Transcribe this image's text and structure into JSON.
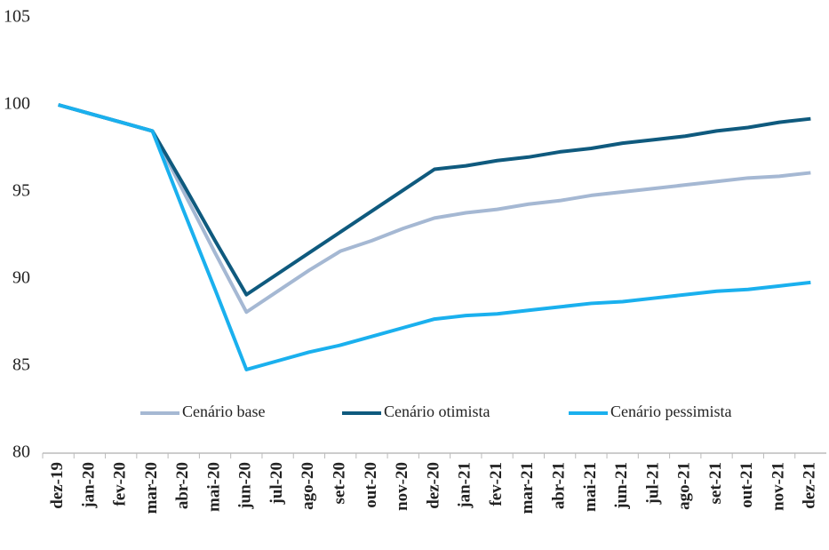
{
  "chart_data": {
    "type": "line",
    "categories": [
      "dez-19",
      "jan-20",
      "fev-20",
      "mar-20",
      "abr-20",
      "mai-20",
      "jun-20",
      "jul-20",
      "ago-20",
      "set-20",
      "out-20",
      "nov-20",
      "dez-20",
      "jan-21",
      "fev-21",
      "mar-21",
      "abr-21",
      "mai-21",
      "jun-21",
      "jul-21",
      "ago-21",
      "set-21",
      "out-21",
      "nov-21",
      "dez-21"
    ],
    "series": [
      {
        "name": "Cenário base",
        "color": "#a5b8d3",
        "values": [
          100,
          99.5,
          99.0,
          98.5,
          95.0,
          91.5,
          88.1,
          89.3,
          90.5,
          91.6,
          92.2,
          92.9,
          93.5,
          93.8,
          94.0,
          94.3,
          94.5,
          94.8,
          95.0,
          95.2,
          95.4,
          95.6,
          95.8,
          95.9,
          96.1
        ]
      },
      {
        "name": "Cenário otimista",
        "color": "#0f5a7e",
        "values": [
          100,
          99.5,
          99.0,
          98.5,
          95.4,
          92.2,
          89.1,
          90.3,
          91.5,
          92.7,
          93.9,
          95.1,
          96.3,
          96.5,
          96.8,
          97.0,
          97.3,
          97.5,
          97.8,
          98.0,
          98.2,
          98.5,
          98.7,
          99.0,
          99.2
        ]
      },
      {
        "name": "Cenário pessimista",
        "color": "#1ab0ee",
        "values": [
          100,
          99.5,
          99.0,
          98.5,
          93.9,
          89.4,
          84.8,
          85.3,
          85.8,
          86.2,
          86.7,
          87.2,
          87.7,
          87.9,
          88.0,
          88.2,
          88.4,
          88.6,
          88.7,
          88.9,
          89.1,
          89.3,
          89.4,
          89.6,
          89.8
        ]
      }
    ],
    "ylim": [
      80,
      105
    ],
    "yticks": [
      80,
      85,
      90,
      95,
      100,
      105
    ],
    "grid": false,
    "legend": "lower center"
  }
}
